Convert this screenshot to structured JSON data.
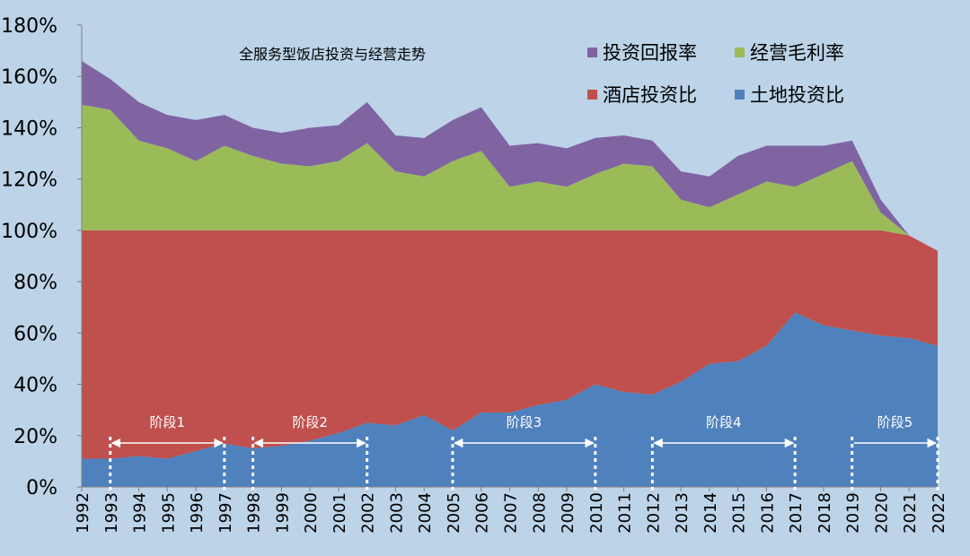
{
  "chart_data": {
    "type": "area",
    "stacked": true,
    "title": "全服务型饭店投资与经营走势",
    "x": [
      "1992",
      "1993",
      "1994",
      "1995",
      "1996",
      "1997",
      "1998",
      "1999",
      "2000",
      "2001",
      "2002",
      "2003",
      "2004",
      "2005",
      "2006",
      "2007",
      "2008",
      "2009",
      "2010",
      "2011",
      "2012",
      "2013",
      "2014",
      "2015",
      "2016",
      "2017",
      "2018",
      "2019",
      "2020",
      "2021",
      "2022"
    ],
    "ylim": [
      0,
      180
    ],
    "yticks": [
      "0%",
      "20%",
      "40%",
      "60%",
      "80%",
      "100%",
      "120%",
      "140%",
      "160%",
      "180%"
    ],
    "grid": false,
    "legend_position": "top-right",
    "series": [
      {
        "name": "土地投资比",
        "color": "#4f81bd",
        "values": [
          11,
          11,
          12,
          11,
          14,
          17,
          15,
          16,
          18,
          21,
          25,
          24,
          28,
          22,
          29,
          29,
          32,
          34,
          40,
          37,
          36,
          41,
          48,
          49,
          55,
          68,
          63,
          61,
          59,
          58,
          55
        ]
      },
      {
        "name": "酒店投资比",
        "color": "#c0504d",
        "values": [
          89,
          89,
          88,
          89,
          86,
          83,
          85,
          84,
          82,
          79,
          75,
          76,
          72,
          78,
          71,
          71,
          68,
          66,
          60,
          63,
          64,
          59,
          52,
          51,
          45,
          32,
          37,
          39,
          41,
          40,
          37
        ]
      },
      {
        "name": "经营毛利率",
        "color": "#9bbb59",
        "values": [
          49,
          47,
          35,
          32,
          27,
          33,
          29,
          26,
          25,
          27,
          34,
          23,
          21,
          27,
          31,
          17,
          19,
          17,
          22,
          26,
          25,
          12,
          9,
          14,
          19,
          17,
          22,
          27,
          7,
          0,
          0
        ]
      },
      {
        "name": "投资回报率",
        "color": "#8064a2",
        "values": [
          17,
          12,
          15,
          13,
          16,
          12,
          11,
          12,
          15,
          14,
          16,
          14,
          15,
          16,
          17,
          16,
          15,
          15,
          14,
          11,
          10,
          11,
          12,
          15,
          14,
          16,
          11,
          8,
          5,
          0,
          0
        ]
      }
    ],
    "legend_order": [
      "投资回报率",
      "经营毛利率",
      "酒店投资比",
      "土地投资比"
    ],
    "annotations": [
      {
        "label": "阶段1",
        "from": "1993",
        "to": "1997",
        "arrow": "both"
      },
      {
        "label": "阶段2",
        "from": "1998",
        "to": "2002",
        "arrow": "both"
      },
      {
        "label": "阶段3",
        "from": "2005",
        "to": "2010",
        "arrow": "both"
      },
      {
        "label": "阶段4",
        "from": "2012",
        "to": "2017",
        "arrow": "both"
      },
      {
        "label": "阶段5",
        "from": "2019",
        "to": "2022",
        "arrow": "right"
      }
    ]
  }
}
